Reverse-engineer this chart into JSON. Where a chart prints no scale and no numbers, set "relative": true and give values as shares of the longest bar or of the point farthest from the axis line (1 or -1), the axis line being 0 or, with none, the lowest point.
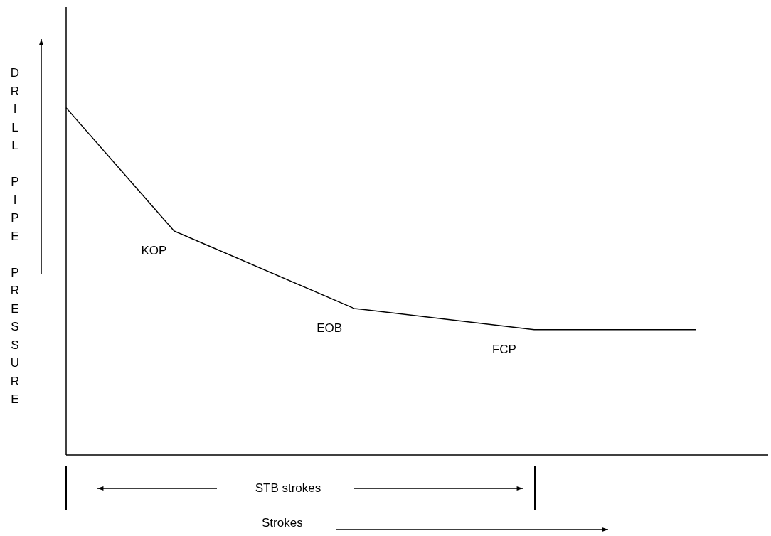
{
  "chart_data": {
    "type": "line",
    "relative": true,
    "ylabel": "DRILL PIPE PRESSURE",
    "annotations": [
      "KOP",
      "EOB",
      "FCP",
      "STB strokes",
      "Strokes"
    ],
    "categories": [
      null,
      null,
      null,
      null,
      null,
      null,
      null,
      null,
      null,
      null,
      null,
      null,
      null,
      null,
      null,
      null,
      null,
      null,
      null,
      null,
      null,
      null,
      null,
      null,
      null,
      null,
      null,
      null,
      null,
      null,
      null,
      null,
      null,
      null,
      null,
      null,
      null,
      null,
      null,
      null
    ],
    "series": [
      {
        "color": "#000000",
        "values": [
          1,
          null,
          null,
          null,
          null,
          null,
          0.645,
          null,
          null,
          null,
          null,
          null,
          null,
          null,
          null,
          null,
          0.422,
          null,
          null,
          null,
          null,
          null,
          null,
          null,
          null,
          null,
          0.361,
          null,
          null,
          null,
          null,
          null,
          null,
          null,
          null,
          0.361,
          null,
          null,
          null,
          null
        ]
      }
    ],
    "marker": "none",
    "line_style": "solid"
  }
}
